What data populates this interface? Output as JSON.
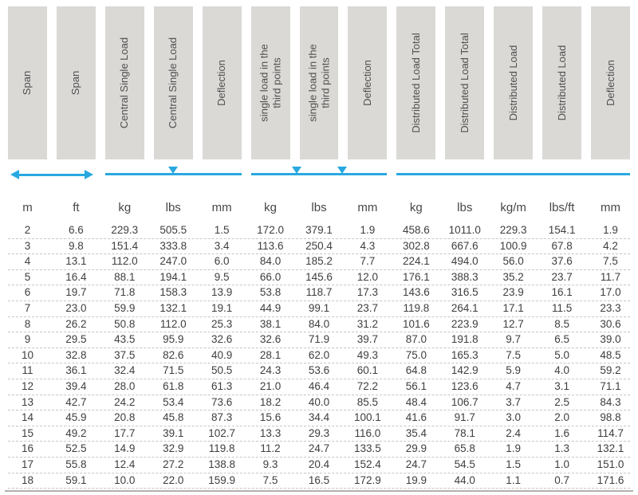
{
  "colors": {
    "accent_blue": "#29a8e0",
    "header_box_gray": "#dbd9d6",
    "header_text": "#4f4f4f",
    "number_text": "#3e3e3e",
    "row_divider": "#c8c6c3",
    "bottom_rule": "#b3b1ae"
  },
  "chart_data": {
    "type": "table",
    "column_headers": [
      "Span",
      "Span",
      "Central Single Load",
      "Central Single Load",
      "Deflection",
      "single load in the\nthird points",
      "single load in the\nthird points",
      "Deflection",
      "Distributed Load Total",
      "Distributed Load Total",
      "Distributed Load",
      "Distributed Load",
      "Deflection"
    ],
    "column_units": [
      "m",
      "ft",
      "kg",
      "lbs",
      "mm",
      "kg",
      "lbs",
      "mm",
      "kg",
      "lbs",
      "kg/m",
      "lbs/ft",
      "mm"
    ],
    "column_groups": [
      {
        "columns": [
          1,
          2
        ],
        "indicator": "double-headed-arrow"
      },
      {
        "columns": [
          3,
          5
        ],
        "indicator": "line-with-center-triangle"
      },
      {
        "columns": [
          6,
          8
        ],
        "indicator": "line-with-two-triangles"
      },
      {
        "columns": [
          9,
          13
        ],
        "indicator": "plain-line"
      }
    ],
    "rows": [
      [
        "2",
        "6.6",
        "229.3",
        "505.5",
        "1.5",
        "172.0",
        "379.1",
        "1.9",
        "458.6",
        "1011.0",
        "229.3",
        "154.1",
        "1.9"
      ],
      [
        "3",
        "9.8",
        "151.4",
        "333.8",
        "3.4",
        "113.6",
        "250.4",
        "4.3",
        "302.8",
        "667.6",
        "100.9",
        "67.8",
        "4.2"
      ],
      [
        "4",
        "13.1",
        "112.0",
        "247.0",
        "6.0",
        "84.0",
        "185.2",
        "7.7",
        "224.1",
        "494.0",
        "56.0",
        "37.6",
        "7.5"
      ],
      [
        "5",
        "16.4",
        "88.1",
        "194.1",
        "9.5",
        "66.0",
        "145.6",
        "12.0",
        "176.1",
        "388.3",
        "35.2",
        "23.7",
        "11.7"
      ],
      [
        "6",
        "19.7",
        "71.8",
        "158.3",
        "13.9",
        "53.8",
        "118.7",
        "17.3",
        "143.6",
        "316.5",
        "23.9",
        "16.1",
        "17.0"
      ],
      [
        "7",
        "23.0",
        "59.9",
        "132.1",
        "19.1",
        "44.9",
        "99.1",
        "23.7",
        "119.8",
        "264.1",
        "17.1",
        "11.5",
        "23.3"
      ],
      [
        "8",
        "26.2",
        "50.8",
        "112.0",
        "25.3",
        "38.1",
        "84.0",
        "31.2",
        "101.6",
        "223.9",
        "12.7",
        "8.5",
        "30.6"
      ],
      [
        "9",
        "29.5",
        "43.5",
        "95.9",
        "32.6",
        "32.6",
        "71.9",
        "39.7",
        "87.0",
        "191.8",
        "9.7",
        "6.5",
        "39.0"
      ],
      [
        "10",
        "32.8",
        "37.5",
        "82.6",
        "40.9",
        "28.1",
        "62.0",
        "49.3",
        "75.0",
        "165.3",
        "7.5",
        "5.0",
        "48.5"
      ],
      [
        "11",
        "36.1",
        "32.4",
        "71.5",
        "50.5",
        "24.3",
        "53.6",
        "60.1",
        "64.8",
        "142.9",
        "5.9",
        "4.0",
        "59.2"
      ],
      [
        "12",
        "39.4",
        "28.0",
        "61.8",
        "61.3",
        "21.0",
        "46.4",
        "72.2",
        "56.1",
        "123.6",
        "4.7",
        "3.1",
        "71.1"
      ],
      [
        "13",
        "42.7",
        "24.2",
        "53.4",
        "73.6",
        "18.2",
        "40.0",
        "85.5",
        "48.4",
        "106.7",
        "3.7",
        "2.5",
        "84.3"
      ],
      [
        "14",
        "45.9",
        "20.8",
        "45.8",
        "87.3",
        "15.6",
        "34.4",
        "100.1",
        "41.6",
        "91.7",
        "3.0",
        "2.0",
        "98.8"
      ],
      [
        "15",
        "49.2",
        "17.7",
        "39.1",
        "102.7",
        "13.3",
        "29.3",
        "116.0",
        "35.4",
        "78.1",
        "2.4",
        "1.6",
        "114.7"
      ],
      [
        "16",
        "52.5",
        "14.9",
        "32.9",
        "119.8",
        "11.2",
        "24.7",
        "133.5",
        "29.9",
        "65.8",
        "1.9",
        "1.3",
        "132.1"
      ],
      [
        "17",
        "55.8",
        "12.4",
        "27.2",
        "138.8",
        "9.3",
        "20.4",
        "152.4",
        "24.7",
        "54.5",
        "1.5",
        "1.0",
        "151.0"
      ],
      [
        "18",
        "59.1",
        "10.0",
        "22.0",
        "159.9",
        "7.5",
        "16.5",
        "172.9",
        "19.9",
        "44.0",
        "1.1",
        "0.7",
        "171.6"
      ]
    ]
  }
}
